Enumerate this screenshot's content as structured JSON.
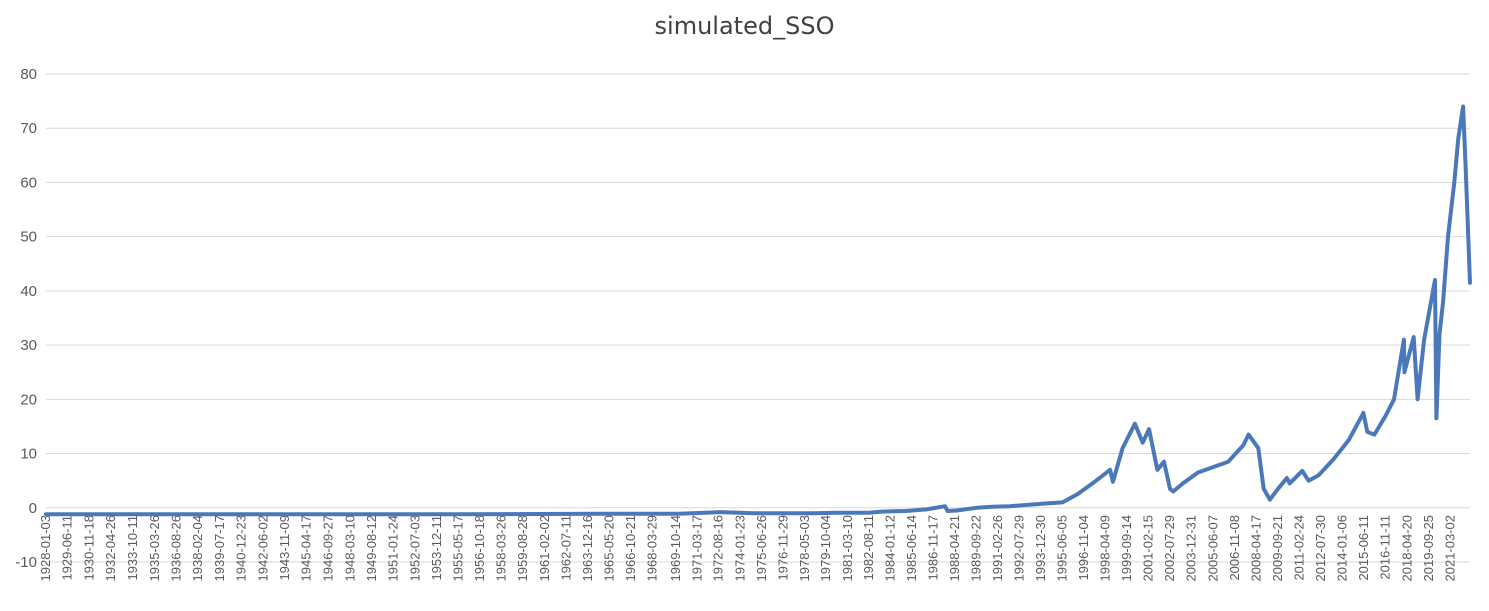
{
  "chart_data": {
    "type": "line",
    "title": "simulated_SSO",
    "xlabel": "",
    "ylabel": "",
    "ylim": [
      -10,
      80
    ],
    "yticks": [
      -10,
      0,
      10,
      20,
      30,
      40,
      50,
      60,
      70,
      80
    ],
    "grid": true,
    "legend": "none",
    "series_color": "#4a78b8",
    "xticks": [
      "1928-01-03",
      "1929-06-11",
      "1930-11-18",
      "1932-04-26",
      "1933-10-11",
      "1935-03-26",
      "1936-08-26",
      "1938-02-04",
      "1939-07-17",
      "1940-12-23",
      "1942-06-02",
      "1943-11-09",
      "1945-04-17",
      "1946-09-27",
      "1948-03-10",
      "1949-08-12",
      "1951-01-24",
      "1952-07-03",
      "1953-12-11",
      "1955-05-17",
      "1956-10-18",
      "1958-03-26",
      "1959-08-28",
      "1961-02-02",
      "1962-07-11",
      "1963-12-16",
      "1965-05-20",
      "1966-10-21",
      "1968-03-29",
      "1969-10-14",
      "1971-03-17",
      "1972-08-16",
      "1974-01-23",
      "1975-06-26",
      "1976-11-29",
      "1978-05-03",
      "1979-10-04",
      "1981-03-10",
      "1982-08-11",
      "1984-01-12",
      "1985-06-14",
      "1986-11-17",
      "1988-04-21",
      "1989-09-22",
      "1991-02-26",
      "1992-07-29",
      "1993-12-30",
      "1995-06-05",
      "1996-11-04",
      "1998-04-09",
      "1999-09-14",
      "2001-02-15",
      "2002-07-29",
      "2003-12-31",
      "2005-06-07",
      "2006-11-08",
      "2008-04-17",
      "2009-09-21",
      "2011-02-24",
      "2012-07-30",
      "2014-01-06",
      "2015-06-11",
      "2016-11-11",
      "2018-04-20",
      "2019-09-25",
      "2021-03-02"
    ],
    "x": [
      "1928-01-03",
      "1935-01-01",
      "1945-01-01",
      "1955-01-01",
      "1965-01-01",
      "1970-01-01",
      "1972-10-01",
      "1974-12-01",
      "1979-01-01",
      "1980-06-01",
      "1982-08-01",
      "1983-06-01",
      "1985-01-01",
      "1986-06-01",
      "1987-08-20",
      "1987-10-20",
      "1988-06-01",
      "1989-09-22",
      "1990-10-01",
      "1991-12-01",
      "1993-06-01",
      "1994-06-01",
      "1995-06-05",
      "1996-06-01",
      "1997-06-01",
      "1998-08-01",
      "1998-10-10",
      "1999-06-01",
      "2000-03-24",
      "2000-10-01",
      "2001-03-01",
      "2001-09-21",
      "2002-03-01",
      "2002-07-23",
      "2002-10-09",
      "2003-06-01",
      "2004-06-01",
      "2005-06-01",
      "2006-06-01",
      "2007-06-01",
      "2007-10-09",
      "2008-06-01",
      "2008-10-10",
      "2009-03-09",
      "2009-09-21",
      "2010-04-23",
      "2010-07-01",
      "2011-04-29",
      "2011-10-03",
      "2012-06-01",
      "2013-06-01",
      "2014-06-01",
      "2015-05-21",
      "2015-08-25",
      "2016-02-11",
      "2016-11-11",
      "2017-06-01",
      "2018-01-26",
      "2018-02-08",
      "2018-09-20",
      "2018-12-24",
      "2019-06-01",
      "2020-02-19",
      "2020-03-23",
      "2020-06-08",
      "2020-09-02",
      "2020-12-31",
      "2021-06-01",
      "2021-09-02",
      "2021-12-31",
      "2022-03-01",
      "2022-06-16"
    ],
    "y": [
      -1.2,
      -1.2,
      -1.2,
      -1.2,
      -1.1,
      -1.1,
      -0.8,
      -1.0,
      -1.0,
      -0.9,
      -0.9,
      -0.7,
      -0.6,
      -0.3,
      0.3,
      -0.6,
      -0.5,
      0.0,
      0.2,
      0.3,
      0.6,
      0.8,
      1.0,
      2.5,
      4.5,
      7.0,
      4.8,
      11.0,
      15.5,
      12.0,
      14.5,
      7.0,
      8.5,
      3.5,
      3.0,
      4.5,
      6.5,
      7.5,
      8.5,
      11.5,
      13.5,
      11.0,
      3.5,
      1.5,
      3.5,
      5.5,
      4.5,
      6.8,
      5.0,
      6.0,
      9.0,
      12.5,
      17.5,
      14.0,
      13.5,
      17.0,
      20.0,
      31.0,
      25.0,
      31.5,
      20.0,
      31.0,
      42.0,
      16.5,
      32.0,
      38.0,
      50.0,
      60.0,
      68.0,
      74.0,
      63.0,
      41.5
    ]
  }
}
